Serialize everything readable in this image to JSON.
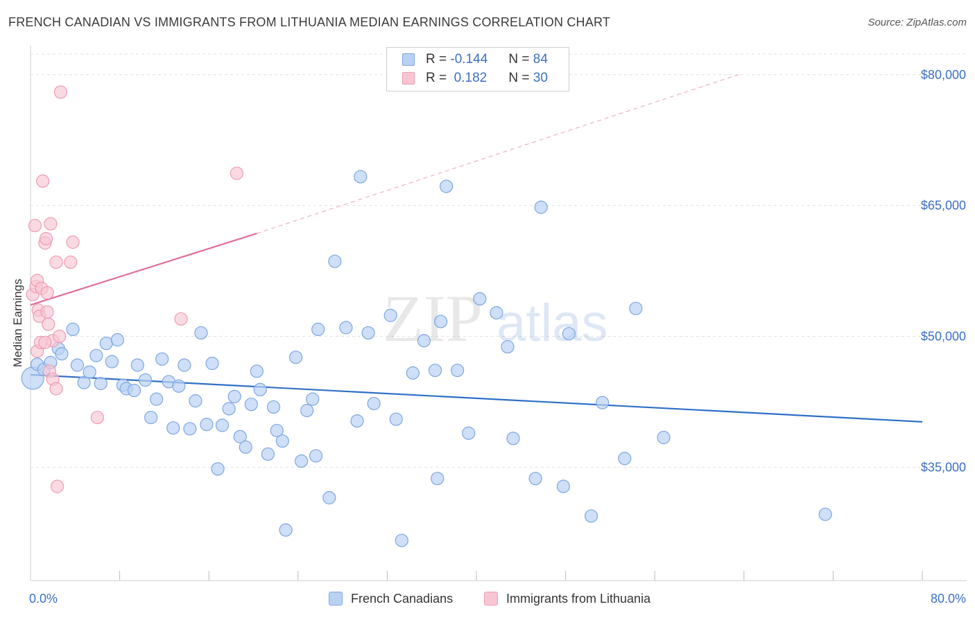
{
  "title": "FRENCH CANADIAN VS IMMIGRANTS FROM LITHUANIA MEDIAN EARNINGS CORRELATION CHART",
  "source": "Source: ZipAtlas.com",
  "watermark": {
    "zip": "ZIP",
    "atlas": "atlas"
  },
  "colors": {
    "blue_fill": "#b9d2f3",
    "blue_stroke": "#7ea6e0",
    "blue_line": "#2f6fc6",
    "pink_fill": "#f8c6d3",
    "pink_stroke": "#ee9ab3",
    "pink_line": "#e06e96",
    "axis_text": "#3b6fc4",
    "grid": "#e2e2e2"
  },
  "legend": {
    "rows": [
      {
        "r_label": "R = ",
        "r_value": "-0.144",
        "n_label": "N = ",
        "n_value": "84"
      },
      {
        "r_label": "R = ",
        "r_value": " 0.182",
        "n_label": "N = ",
        "n_value": "30"
      }
    ]
  },
  "bottom_legend": {
    "blue": "French Canadians",
    "pink": "Immigrants from Lithuania"
  },
  "chart_data": {
    "type": "scatter",
    "title": "FRENCH CANADIAN VS IMMIGRANTS FROM LITHUANIA MEDIAN EARNINGS CORRELATION CHART",
    "xlabel": "",
    "ylabel": "Median Earnings",
    "xlim": [
      0,
      80
    ],
    "ylim": [
      22000,
      83000
    ],
    "x_tick_labels": [
      {
        "value": 0,
        "label": "0.0%"
      },
      {
        "value": 80,
        "label": "80.0%"
      }
    ],
    "y_tick_labels": [
      {
        "value": 35000,
        "label": "$35,000"
      },
      {
        "value": 50000,
        "label": "$50,000"
      },
      {
        "value": 65000,
        "label": "$65,000"
      },
      {
        "value": 80000,
        "label": "$80,000"
      }
    ],
    "grid": "horizontal dashed",
    "series": [
      {
        "name": "French Canadians",
        "color": "#b9d2f3",
        "trend": {
          "x": [
            0,
            80
          ],
          "y": [
            45600,
            40200
          ],
          "style": "solid"
        },
        "points": [
          [
            0.2,
            45200
          ],
          [
            0.6,
            46800
          ],
          [
            1.2,
            46200
          ],
          [
            1.8,
            47000
          ],
          [
            2.5,
            48600
          ],
          [
            2.8,
            48000
          ],
          [
            3.8,
            50800
          ],
          [
            4.2,
            46700
          ],
          [
            4.8,
            44700
          ],
          [
            5.3,
            45900
          ],
          [
            5.9,
            47800
          ],
          [
            6.3,
            44600
          ],
          [
            6.8,
            49200
          ],
          [
            7.3,
            47100
          ],
          [
            7.8,
            49600
          ],
          [
            8.3,
            44400
          ],
          [
            8.6,
            44000
          ],
          [
            9.3,
            43800
          ],
          [
            9.6,
            46700
          ],
          [
            10.3,
            45000
          ],
          [
            10.8,
            40700
          ],
          [
            11.3,
            42800
          ],
          [
            11.8,
            47400
          ],
          [
            12.4,
            44800
          ],
          [
            12.8,
            39500
          ],
          [
            13.3,
            44300
          ],
          [
            13.8,
            46700
          ],
          [
            14.3,
            39400
          ],
          [
            14.8,
            42600
          ],
          [
            15.3,
            50400
          ],
          [
            15.8,
            39900
          ],
          [
            16.3,
            46900
          ],
          [
            16.8,
            34800
          ],
          [
            17.2,
            39800
          ],
          [
            17.8,
            41700
          ],
          [
            18.3,
            43100
          ],
          [
            18.8,
            38500
          ],
          [
            19.3,
            37300
          ],
          [
            19.8,
            42200
          ],
          [
            20.3,
            46000
          ],
          [
            20.6,
            43900
          ],
          [
            21.3,
            36500
          ],
          [
            21.8,
            41900
          ],
          [
            22.1,
            39200
          ],
          [
            22.6,
            38000
          ],
          [
            22.9,
            27800
          ],
          [
            23.8,
            47600
          ],
          [
            24.3,
            35700
          ],
          [
            24.8,
            41500
          ],
          [
            25.3,
            42800
          ],
          [
            25.8,
            50800
          ],
          [
            25.6,
            36300
          ],
          [
            26.8,
            31500
          ],
          [
            27.3,
            58600
          ],
          [
            28.3,
            51000
          ],
          [
            29.3,
            40300
          ],
          [
            29.6,
            68300
          ],
          [
            30.3,
            50400
          ],
          [
            30.8,
            42300
          ],
          [
            32.3,
            52400
          ],
          [
            32.8,
            40500
          ],
          [
            33.3,
            26600
          ],
          [
            34.3,
            45800
          ],
          [
            35.3,
            49500
          ],
          [
            36.3,
            46100
          ],
          [
            36.8,
            51700
          ],
          [
            37.3,
            67200
          ],
          [
            38.3,
            46100
          ],
          [
            39.3,
            38900
          ],
          [
            40.3,
            54300
          ],
          [
            41.8,
            52700
          ],
          [
            42.8,
            48800
          ],
          [
            43.3,
            38300
          ],
          [
            45.3,
            33700
          ],
          [
            45.8,
            64800
          ],
          [
            47.8,
            32800
          ],
          [
            48.3,
            50300
          ],
          [
            50.3,
            29400
          ],
          [
            51.3,
            42400
          ],
          [
            53.3,
            36000
          ],
          [
            54.3,
            53200
          ],
          [
            56.8,
            38400
          ],
          [
            71.3,
            29600
          ],
          [
            36.5,
            33700
          ]
        ]
      },
      {
        "name": "Immigrants from Lithuania",
        "color": "#f8c6d3",
        "trend": {
          "x": [
            0,
            20.3
          ],
          "y": [
            53600,
            61800
          ],
          "style": "solid",
          "extended_to": [
            63.5,
            80000
          ]
        },
        "points": [
          [
            0.2,
            54800
          ],
          [
            0.5,
            55700
          ],
          [
            0.6,
            56400
          ],
          [
            0.7,
            53000
          ],
          [
            0.4,
            62700
          ],
          [
            0.8,
            52300
          ],
          [
            0.6,
            48300
          ],
          [
            0.9,
            49300
          ],
          [
            1.0,
            55500
          ],
          [
            1.1,
            67800
          ],
          [
            1.3,
            60700
          ],
          [
            1.4,
            61200
          ],
          [
            1.5,
            55000
          ],
          [
            1.5,
            52800
          ],
          [
            1.6,
            51400
          ],
          [
            1.7,
            46000
          ],
          [
            1.8,
            62900
          ],
          [
            2.0,
            45100
          ],
          [
            2.0,
            49500
          ],
          [
            2.3,
            44000
          ],
          [
            2.6,
            50000
          ],
          [
            2.3,
            58500
          ],
          [
            2.4,
            32800
          ],
          [
            2.7,
            78000
          ],
          [
            3.6,
            58500
          ],
          [
            3.8,
            60800
          ],
          [
            6.0,
            40700
          ],
          [
            13.5,
            52000
          ],
          [
            18.5,
            68700
          ],
          [
            1.3,
            49300
          ]
        ]
      }
    ]
  }
}
